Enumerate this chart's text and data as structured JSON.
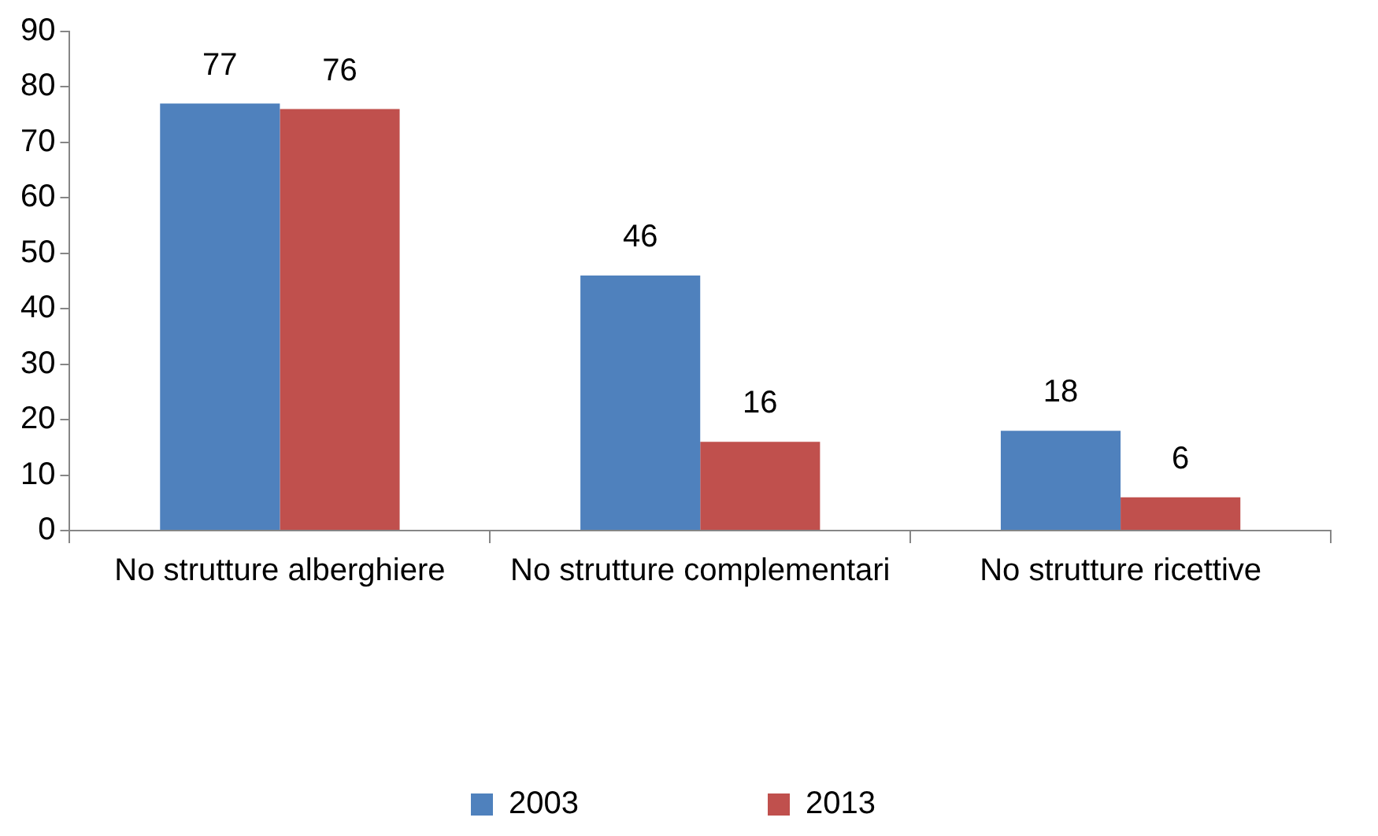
{
  "chart_data": {
    "type": "bar",
    "categories": [
      "No strutture alberghiere",
      "No strutture complementari",
      "No strutture ricettive"
    ],
    "series": [
      {
        "name": "2003",
        "color": "#4f81bd",
        "values": [
          77,
          46,
          18
        ]
      },
      {
        "name": "2013",
        "color": "#c0504d",
        "values": [
          76,
          16,
          6
        ]
      }
    ],
    "ylim": [
      0,
      90
    ],
    "yticks": [
      0,
      10,
      20,
      30,
      40,
      50,
      60,
      70,
      80,
      90
    ],
    "grid": false,
    "legend": "bottom",
    "data_labels": true
  }
}
